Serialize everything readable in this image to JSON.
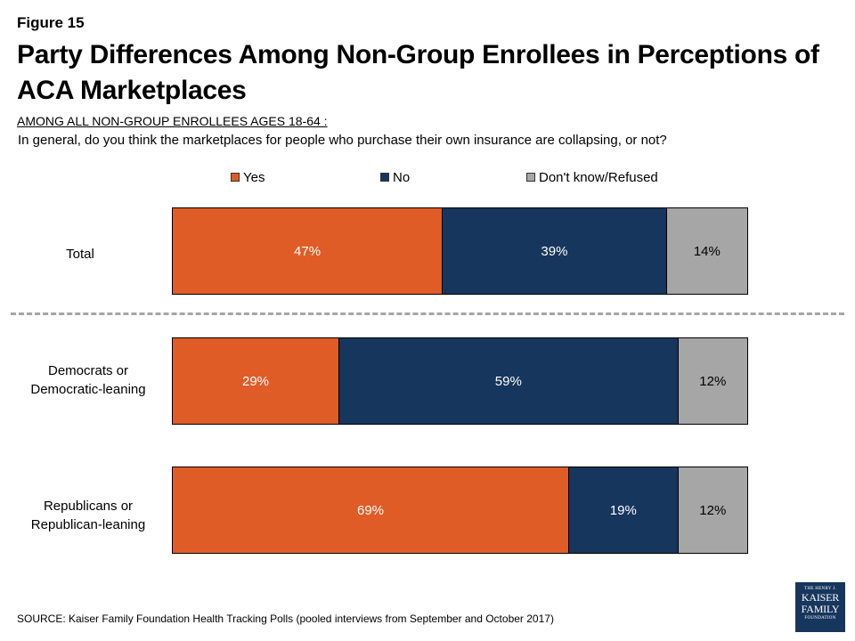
{
  "figure_label": "Figure 15",
  "title": "Party Differences Among Non-Group Enrollees in Perceptions of ACA Marketplaces",
  "subtitle": "AMONG ALL NON-GROUP ENROLLEES AGES 18-64 :",
  "question": "In general, do you think the marketplaces for people who purchase their own insurance are collapsing, or not?",
  "source": "SOURCE: Kaiser Family Foundation Health Tracking Polls (pooled interviews from September and October 2017)",
  "logo": {
    "line1": "THE HENRY J.",
    "line2": "KAISER",
    "line3": "FAMILY",
    "line4": "FOUNDATION"
  },
  "colors": {
    "yes": "#e05c27",
    "no": "#17365d",
    "dont_know": "#a6a6a6"
  },
  "chart_data": {
    "type": "bar",
    "orientation": "horizontal",
    "stacked": true,
    "legend_position": "top",
    "categories": [
      "Total",
      "Democrats or Democratic-leaning",
      "Republicans or Republican-leaning"
    ],
    "series": [
      {
        "name": "Yes",
        "values": [
          47,
          29,
          69
        ],
        "labels": [
          "47%",
          "29%",
          "69%"
        ]
      },
      {
        "name": "No",
        "values": [
          39,
          59,
          19
        ],
        "labels": [
          "39%",
          "59%",
          "19%"
        ]
      },
      {
        "name": "Don't know/Refused",
        "values": [
          14,
          12,
          12
        ],
        "labels": [
          "14%",
          "12%",
          "12%"
        ]
      }
    ],
    "xlim": [
      0,
      100
    ]
  }
}
